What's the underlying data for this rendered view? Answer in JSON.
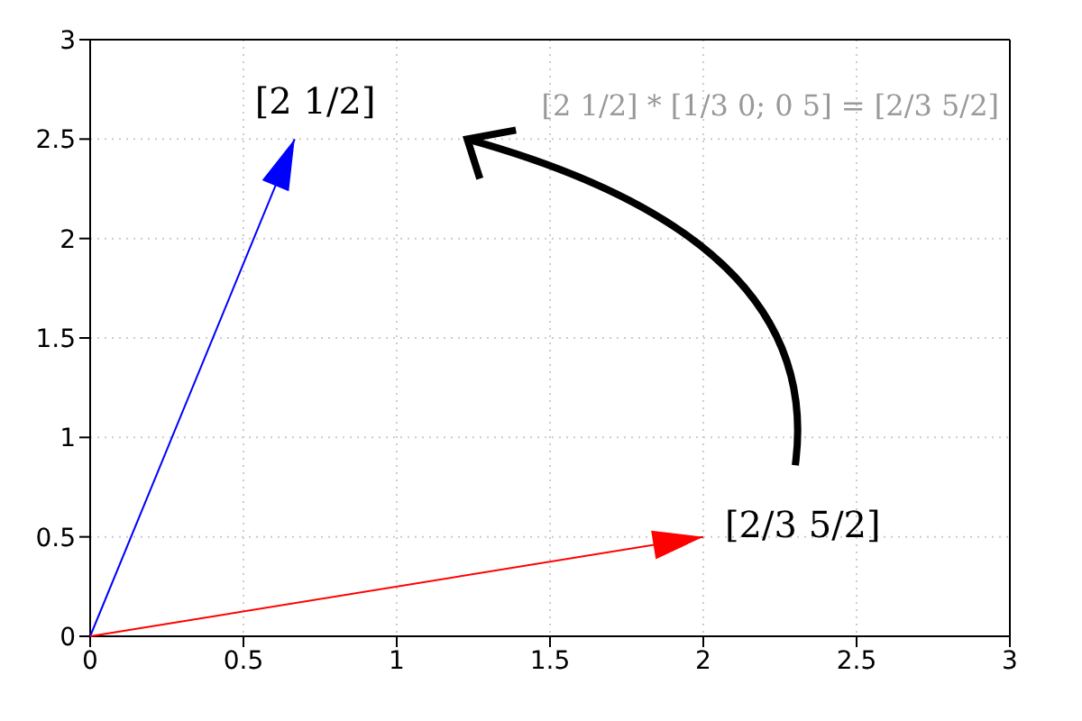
{
  "chart_data": {
    "type": "line",
    "xlim": [
      0,
      3
    ],
    "ylim": [
      0,
      3
    ],
    "xticks": [
      0,
      0.5,
      1,
      1.5,
      2,
      2.5,
      3
    ],
    "yticks": [
      0,
      0.5,
      1,
      1.5,
      2,
      2.5,
      3
    ],
    "grid": true,
    "series": [
      {
        "color": "#0000ff",
        "x": [
          0,
          0.667
        ],
        "values": [
          0,
          2.5
        ]
      },
      {
        "color": "#ff0000",
        "x": [
          0,
          2
        ],
        "values": [
          0,
          0.5
        ]
      }
    ],
    "annotations": [
      {
        "text": "[2   1/2]",
        "x": 0.667,
        "y": 2.5
      },
      {
        "text": "[2/3   5/2]",
        "x": 2,
        "y": 0.5
      },
      "[2   1/2] * [1/3  0; 0  5] = [2/3   5/2]"
    ]
  }
}
